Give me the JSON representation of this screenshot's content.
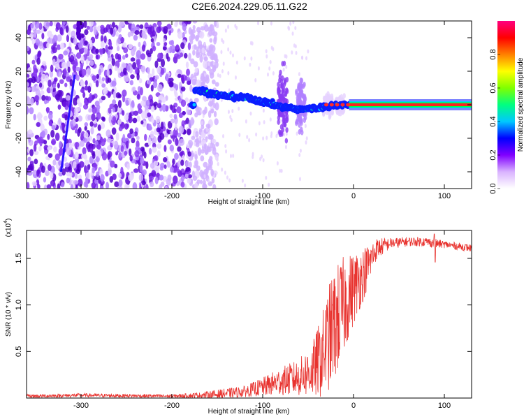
{
  "title": "C2E6.2024.229.05.11.G22",
  "chart_data": [
    {
      "type": "heatmap",
      "xlabel": "Height of straight line (km)",
      "ylabel": "Frequency (Hz)",
      "xlim": [
        -360,
        130
      ],
      "ylim": [
        -50,
        50
      ],
      "xticks": [
        -300,
        -200,
        -100,
        0,
        100
      ],
      "yticks": [
        -40,
        -20,
        0,
        20,
        40
      ],
      "colorbar": {
        "label": "Normalized spectral amplitude",
        "range": [
          0,
          1
        ],
        "ticks": [
          "0.0",
          "0.2",
          "0.4",
          "0.6",
          "0.8"
        ],
        "colors": [
          "#ffffff",
          "#d9b3ff",
          "#8000ff",
          "#0000ff",
          "#00c8ff",
          "#00ff80",
          "#80ff00",
          "#ffff00",
          "#ff8000",
          "#ff0000",
          "#ff0080"
        ]
      },
      "features": {
        "noise_region_x": [
          -360,
          -170
        ],
        "dominant_track": [
          {
            "x": -175,
            "y": 9
          },
          {
            "x": -150,
            "y": 6
          },
          {
            "x": -120,
            "y": 4
          },
          {
            "x": -100,
            "y": 2
          },
          {
            "x": -80,
            "y": -1
          },
          {
            "x": -60,
            "y": -3
          },
          {
            "x": -40,
            "y": -2
          },
          {
            "x": -20,
            "y": 0
          },
          {
            "x": 0,
            "y": 0
          },
          {
            "x": 130,
            "y": 0
          }
        ],
        "diagonal_streak": [
          {
            "x": -322,
            "y": -40
          },
          {
            "x": -307,
            "y": 18
          }
        ]
      }
    },
    {
      "type": "line",
      "xlabel": "Height of straight line (km)",
      "ylabel": "SNR (10 * v/v)",
      "y_multiplier": "(x10",
      "y_multiplier_exp": "4",
      "xlim": [
        -360,
        130
      ],
      "ylim": [
        0,
        1.8
      ],
      "xticks": [
        -300,
        -200,
        -100,
        0,
        100
      ],
      "yticks": [
        "0.5",
        "1.0",
        "1.5"
      ],
      "series": [
        {
          "color": "#e8322e",
          "x": [
            -360,
            -300,
            -200,
            -170,
            -150,
            -120,
            -100,
            -80,
            -60,
            -45,
            -35,
            -25,
            -15,
            -5,
            5,
            15,
            25,
            40,
            60,
            80,
            90,
            100,
            115,
            130
          ],
          "y": [
            0.02,
            0.03,
            0.02,
            0.03,
            0.04,
            0.07,
            0.12,
            0.18,
            0.22,
            0.3,
            0.45,
            0.7,
            0.9,
            1.1,
            1.25,
            1.4,
            1.6,
            1.66,
            1.68,
            1.68,
            1.66,
            1.65,
            1.63,
            1.61
          ],
          "spread": [
            0.02,
            0.02,
            0.02,
            0.03,
            0.05,
            0.06,
            0.1,
            0.15,
            0.2,
            0.3,
            0.45,
            0.6,
            0.6,
            0.45,
            0.35,
            0.25,
            0.12,
            0.06,
            0.05,
            0.05,
            0.05,
            0.04,
            0.04,
            0.04
          ]
        }
      ]
    }
  ]
}
